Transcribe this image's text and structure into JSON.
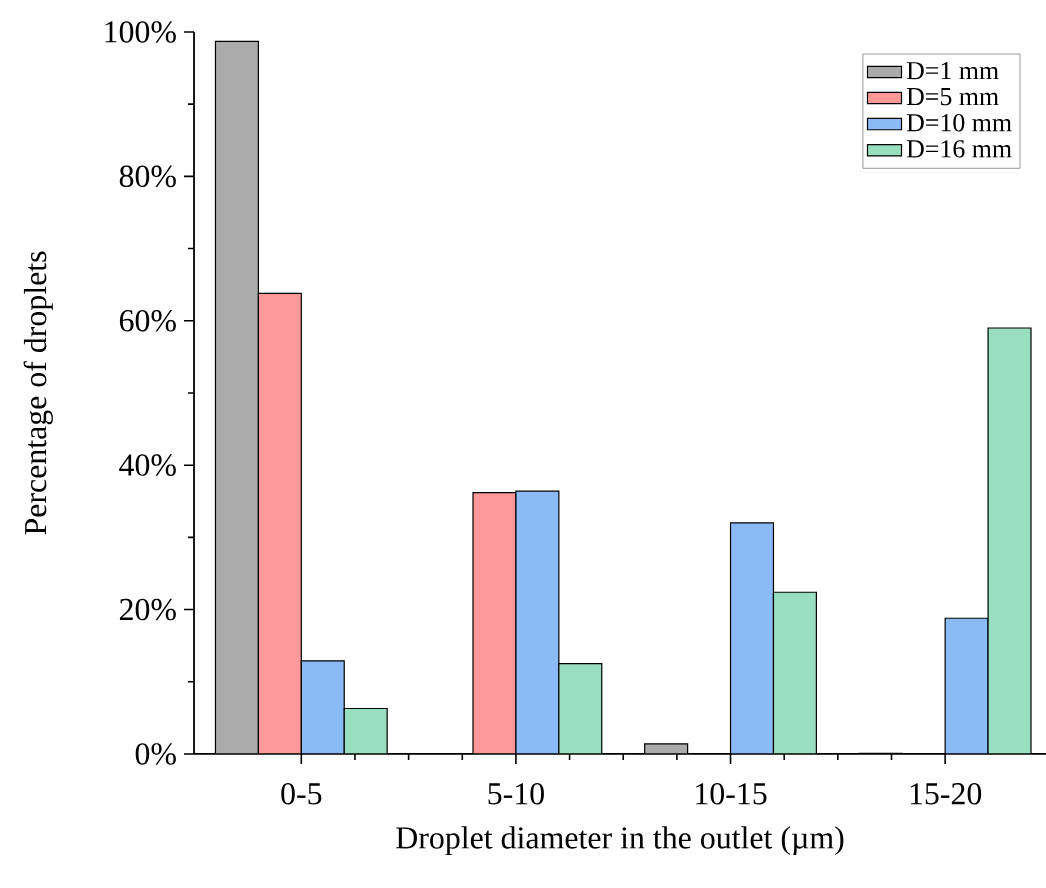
{
  "chart_data": {
    "type": "bar",
    "xlabel": "Droplet diameter in the outlet (µm)",
    "ylabel": "Percentage of droplets",
    "categories": [
      "0-5",
      "5-10",
      "10-15",
      "15-20"
    ],
    "series": [
      {
        "name": "D=1 mm",
        "color": "#aaaaaa",
        "values": [
          98.7,
          null,
          1.4,
          0.1
        ]
      },
      {
        "name": "D=5 mm",
        "color": "#ff9999",
        "values": [
          63.8,
          36.2,
          null,
          null
        ]
      },
      {
        "name": "D=10 mm",
        "color": "#8bbbf7",
        "values": [
          12.9,
          36.4,
          32.0,
          18.8
        ]
      },
      {
        "name": "D=16 mm",
        "color": "#99dfbf",
        "values": [
          6.3,
          12.5,
          22.4,
          59.0
        ]
      }
    ],
    "ylim": [
      0,
      100
    ],
    "yticks": [
      {
        "value": 0,
        "label": "0%"
      },
      {
        "value": 20,
        "label": "20%"
      },
      {
        "value": 40,
        "label": "40%"
      },
      {
        "value": 60,
        "label": "60%"
      },
      {
        "value": 80,
        "label": "80%"
      },
      {
        "value": 100,
        "label": "100%"
      }
    ],
    "grid": false,
    "legend": "top right"
  }
}
